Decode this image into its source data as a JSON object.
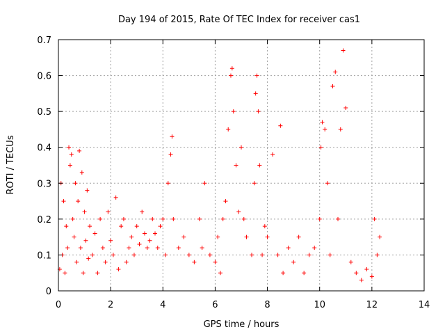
{
  "chart_data": {
    "type": "scatter",
    "title": "Day 194 of 2015, Rate Of TEC Index for receiver cas1",
    "xlabel": "GPS time / hours",
    "ylabel": "ROTI / TECUs",
    "xlim": [
      0,
      14
    ],
    "ylim": [
      0,
      0.7
    ],
    "xticks": [
      0,
      2,
      4,
      6,
      8,
      10,
      12,
      14
    ],
    "yticks": [
      0,
      0.1,
      0.2,
      0.3,
      0.4,
      0.5,
      0.6,
      0.7
    ],
    "grid": true,
    "marker": "plus",
    "series": [
      {
        "name": "ROTI",
        "color": "#ff0000",
        "x": [
          0.05,
          0.1,
          0.15,
          0.2,
          0.25,
          0.3,
          0.35,
          0.4,
          0.45,
          0.5,
          0.55,
          0.6,
          0.65,
          0.7,
          0.75,
          0.8,
          0.85,
          0.9,
          0.95,
          1.0,
          1.05,
          1.1,
          1.15,
          1.2,
          1.3,
          1.4,
          1.5,
          1.6,
          1.7,
          1.8,
          1.9,
          2.0,
          2.1,
          2.2,
          2.3,
          2.4,
          2.5,
          2.6,
          2.7,
          2.8,
          2.9,
          3.0,
          3.1,
          3.2,
          3.3,
          3.4,
          3.5,
          3.6,
          3.7,
          3.8,
          3.9,
          4.0,
          4.1,
          4.2,
          4.3,
          4.35,
          4.4,
          4.6,
          4.8,
          5.0,
          5.2,
          5.4,
          5.5,
          5.6,
          5.8,
          6.0,
          6.1,
          6.2,
          6.3,
          6.4,
          6.5,
          6.6,
          6.65,
          6.7,
          6.8,
          6.9,
          7.0,
          7.1,
          7.2,
          7.4,
          7.5,
          7.55,
          7.6,
          7.65,
          7.7,
          7.8,
          7.9,
          8.0,
          8.2,
          8.4,
          8.5,
          8.6,
          8.8,
          9.0,
          9.2,
          9.4,
          9.6,
          9.8,
          10.0,
          10.05,
          10.1,
          10.2,
          10.3,
          10.4,
          10.5,
          10.6,
          10.7,
          10.8,
          10.9,
          11.0,
          11.2,
          11.4,
          11.6,
          11.8,
          12.0,
          12.1,
          12.2,
          12.3
        ],
        "y": [
          0.06,
          0.3,
          0.1,
          0.25,
          0.05,
          0.18,
          0.12,
          0.4,
          0.35,
          0.38,
          0.2,
          0.15,
          0.3,
          0.08,
          0.25,
          0.39,
          0.12,
          0.33,
          0.05,
          0.22,
          0.14,
          0.28,
          0.09,
          0.18,
          0.1,
          0.16,
          0.05,
          0.2,
          0.12,
          0.08,
          0.22,
          0.14,
          0.1,
          0.26,
          0.06,
          0.18,
          0.2,
          0.08,
          0.12,
          0.15,
          0.1,
          0.18,
          0.13,
          0.22,
          0.16,
          0.12,
          0.14,
          0.2,
          0.16,
          0.12,
          0.18,
          0.2,
          0.1,
          0.3,
          0.38,
          0.43,
          0.2,
          0.12,
          0.15,
          0.1,
          0.08,
          0.2,
          0.12,
          0.3,
          0.1,
          0.08,
          0.15,
          0.05,
          0.2,
          0.25,
          0.45,
          0.6,
          0.62,
          0.5,
          0.35,
          0.22,
          0.4,
          0.2,
          0.15,
          0.1,
          0.3,
          0.55,
          0.6,
          0.5,
          0.35,
          0.1,
          0.18,
          0.15,
          0.38,
          0.1,
          0.46,
          0.05,
          0.12,
          0.08,
          0.15,
          0.05,
          0.1,
          0.12,
          0.2,
          0.4,
          0.47,
          0.45,
          0.3,
          0.1,
          0.57,
          0.61,
          0.2,
          0.45,
          0.67,
          0.51,
          0.08,
          0.05,
          0.03,
          0.06,
          0.04,
          0.2,
          0.1,
          0.15
        ]
      }
    ]
  }
}
